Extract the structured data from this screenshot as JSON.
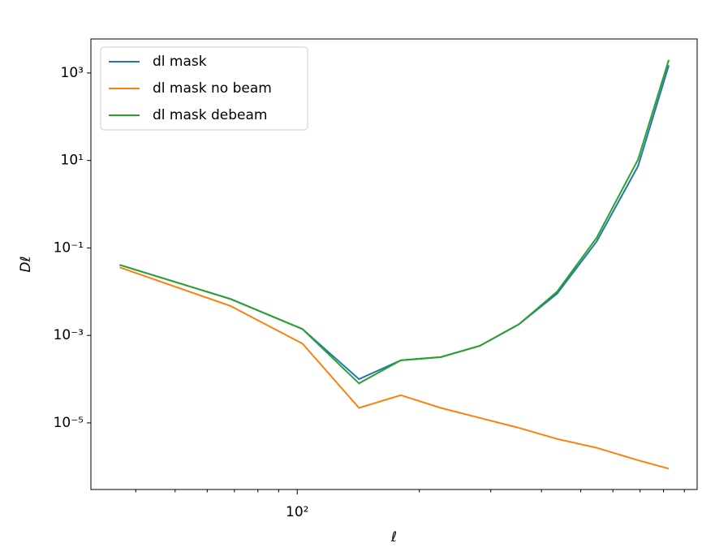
{
  "chart_data": {
    "type": "line",
    "xlabel": "ℓ",
    "ylabel": "Dℓ",
    "x": [
      36.5,
      68.5,
      103,
      142,
      180,
      226,
      282,
      352,
      437,
      547,
      692,
      824
    ],
    "series": [
      {
        "name": "dl mask",
        "color": "#1f77b4",
        "values": [
          0.041,
          0.0068,
          0.0014,
          0.0001,
          0.00027,
          0.00032,
          0.00058,
          0.0018,
          0.009,
          0.14,
          7.4,
          1500
        ]
      },
      {
        "name": "dl mask no beam",
        "color": "#ff7f0e",
        "values": [
          0.036,
          0.0047,
          0.00065,
          2.2e-05,
          4.3e-05,
          2.2e-05,
          1.3e-05,
          7.7e-06,
          4.3e-06,
          2.7e-06,
          1.4e-06,
          9e-07
        ]
      },
      {
        "name": "dl mask debeam",
        "color": "#2ca02c",
        "values": [
          0.041,
          0.0068,
          0.0014,
          8e-05,
          0.00027,
          0.00032,
          0.00058,
          0.0018,
          0.01,
          0.17,
          10.5,
          2000
        ]
      }
    ],
    "xscale": "log",
    "yscale": "log",
    "xlim": [
      31,
      968
    ],
    "ylim": [
      3e-07,
      6000
    ],
    "xticks": [
      {
        "value": 100,
        "label": "10²"
      }
    ],
    "xminorticks": [
      40,
      50,
      60,
      70,
      80,
      90,
      200,
      300,
      400,
      500,
      600,
      700,
      800,
      900
    ],
    "yticks": [
      {
        "value": 1e-05,
        "label": "10⁻⁵"
      },
      {
        "value": 0.001,
        "label": "10⁻³"
      },
      {
        "value": 0.1,
        "label": "10⁻¹"
      },
      {
        "value": 10,
        "label": "10¹"
      },
      {
        "value": 1000,
        "label": "10³"
      }
    ],
    "legend": "upper left",
    "grid": false
  }
}
